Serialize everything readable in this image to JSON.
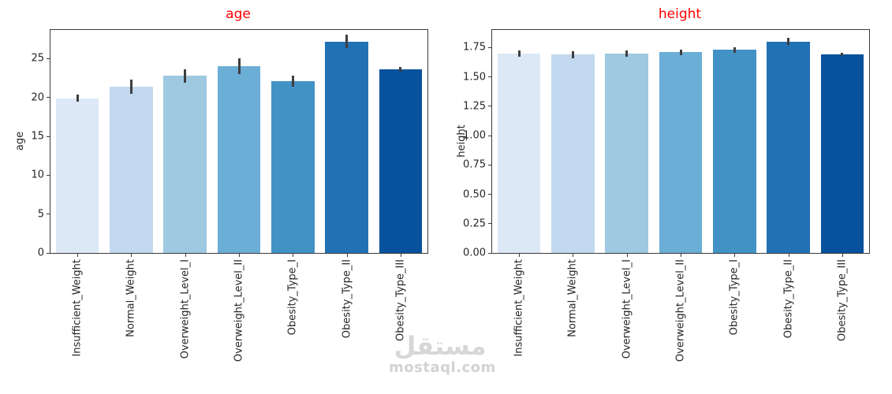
{
  "watermark": {
    "line1": "مستقل",
    "line2": "mostaql.com"
  },
  "bar_colors": [
    "#dce8f6",
    "#c2d9ef",
    "#9ec9e0",
    "#6baed6",
    "#4292c6",
    "#2171b5",
    "#08519c"
  ],
  "error_color": "#3f3f3f",
  "title_color": "#ff0000",
  "chart_data": [
    {
      "type": "bar",
      "title": "age",
      "ylabel": "age",
      "xlabel": "",
      "categories": [
        "Insufficient_Weight",
        "Normal_Weight",
        "Overweight_Level_I",
        "Overweight_Level_II",
        "Obesity_Type_I",
        "Obesity_Type_II",
        "Obesity_Type_III"
      ],
      "values": [
        19.9,
        21.4,
        22.8,
        24.0,
        22.1,
        27.2,
        23.6
      ],
      "errors": [
        0.45,
        0.9,
        0.85,
        1.0,
        0.7,
        0.85,
        0.3
      ],
      "ylim": [
        0,
        28.7
      ],
      "yticks": [
        "0",
        "5",
        "10",
        "15",
        "20",
        "25"
      ],
      "grid": false,
      "legend": "none"
    },
    {
      "type": "bar",
      "title": "height",
      "ylabel": "height",
      "xlabel": "",
      "categories": [
        "Insufficient_Weight",
        "Normal_Weight",
        "Overweight_Level_I",
        "Overweight_Level_II",
        "Obesity_Type_I",
        "Obesity_Type_II",
        "Obesity_Type_III"
      ],
      "values": [
        1.7,
        1.69,
        1.7,
        1.71,
        1.73,
        1.8,
        1.69
      ],
      "errors": [
        0.025,
        0.03,
        0.025,
        0.025,
        0.025,
        0.03,
        0.015
      ],
      "ylim": [
        0,
        1.9
      ],
      "yticks": [
        "0.00",
        "0.25",
        "0.50",
        "0.75",
        "1.00",
        "1.25",
        "1.50",
        "1.75"
      ],
      "grid": false,
      "legend": "none"
    }
  ]
}
